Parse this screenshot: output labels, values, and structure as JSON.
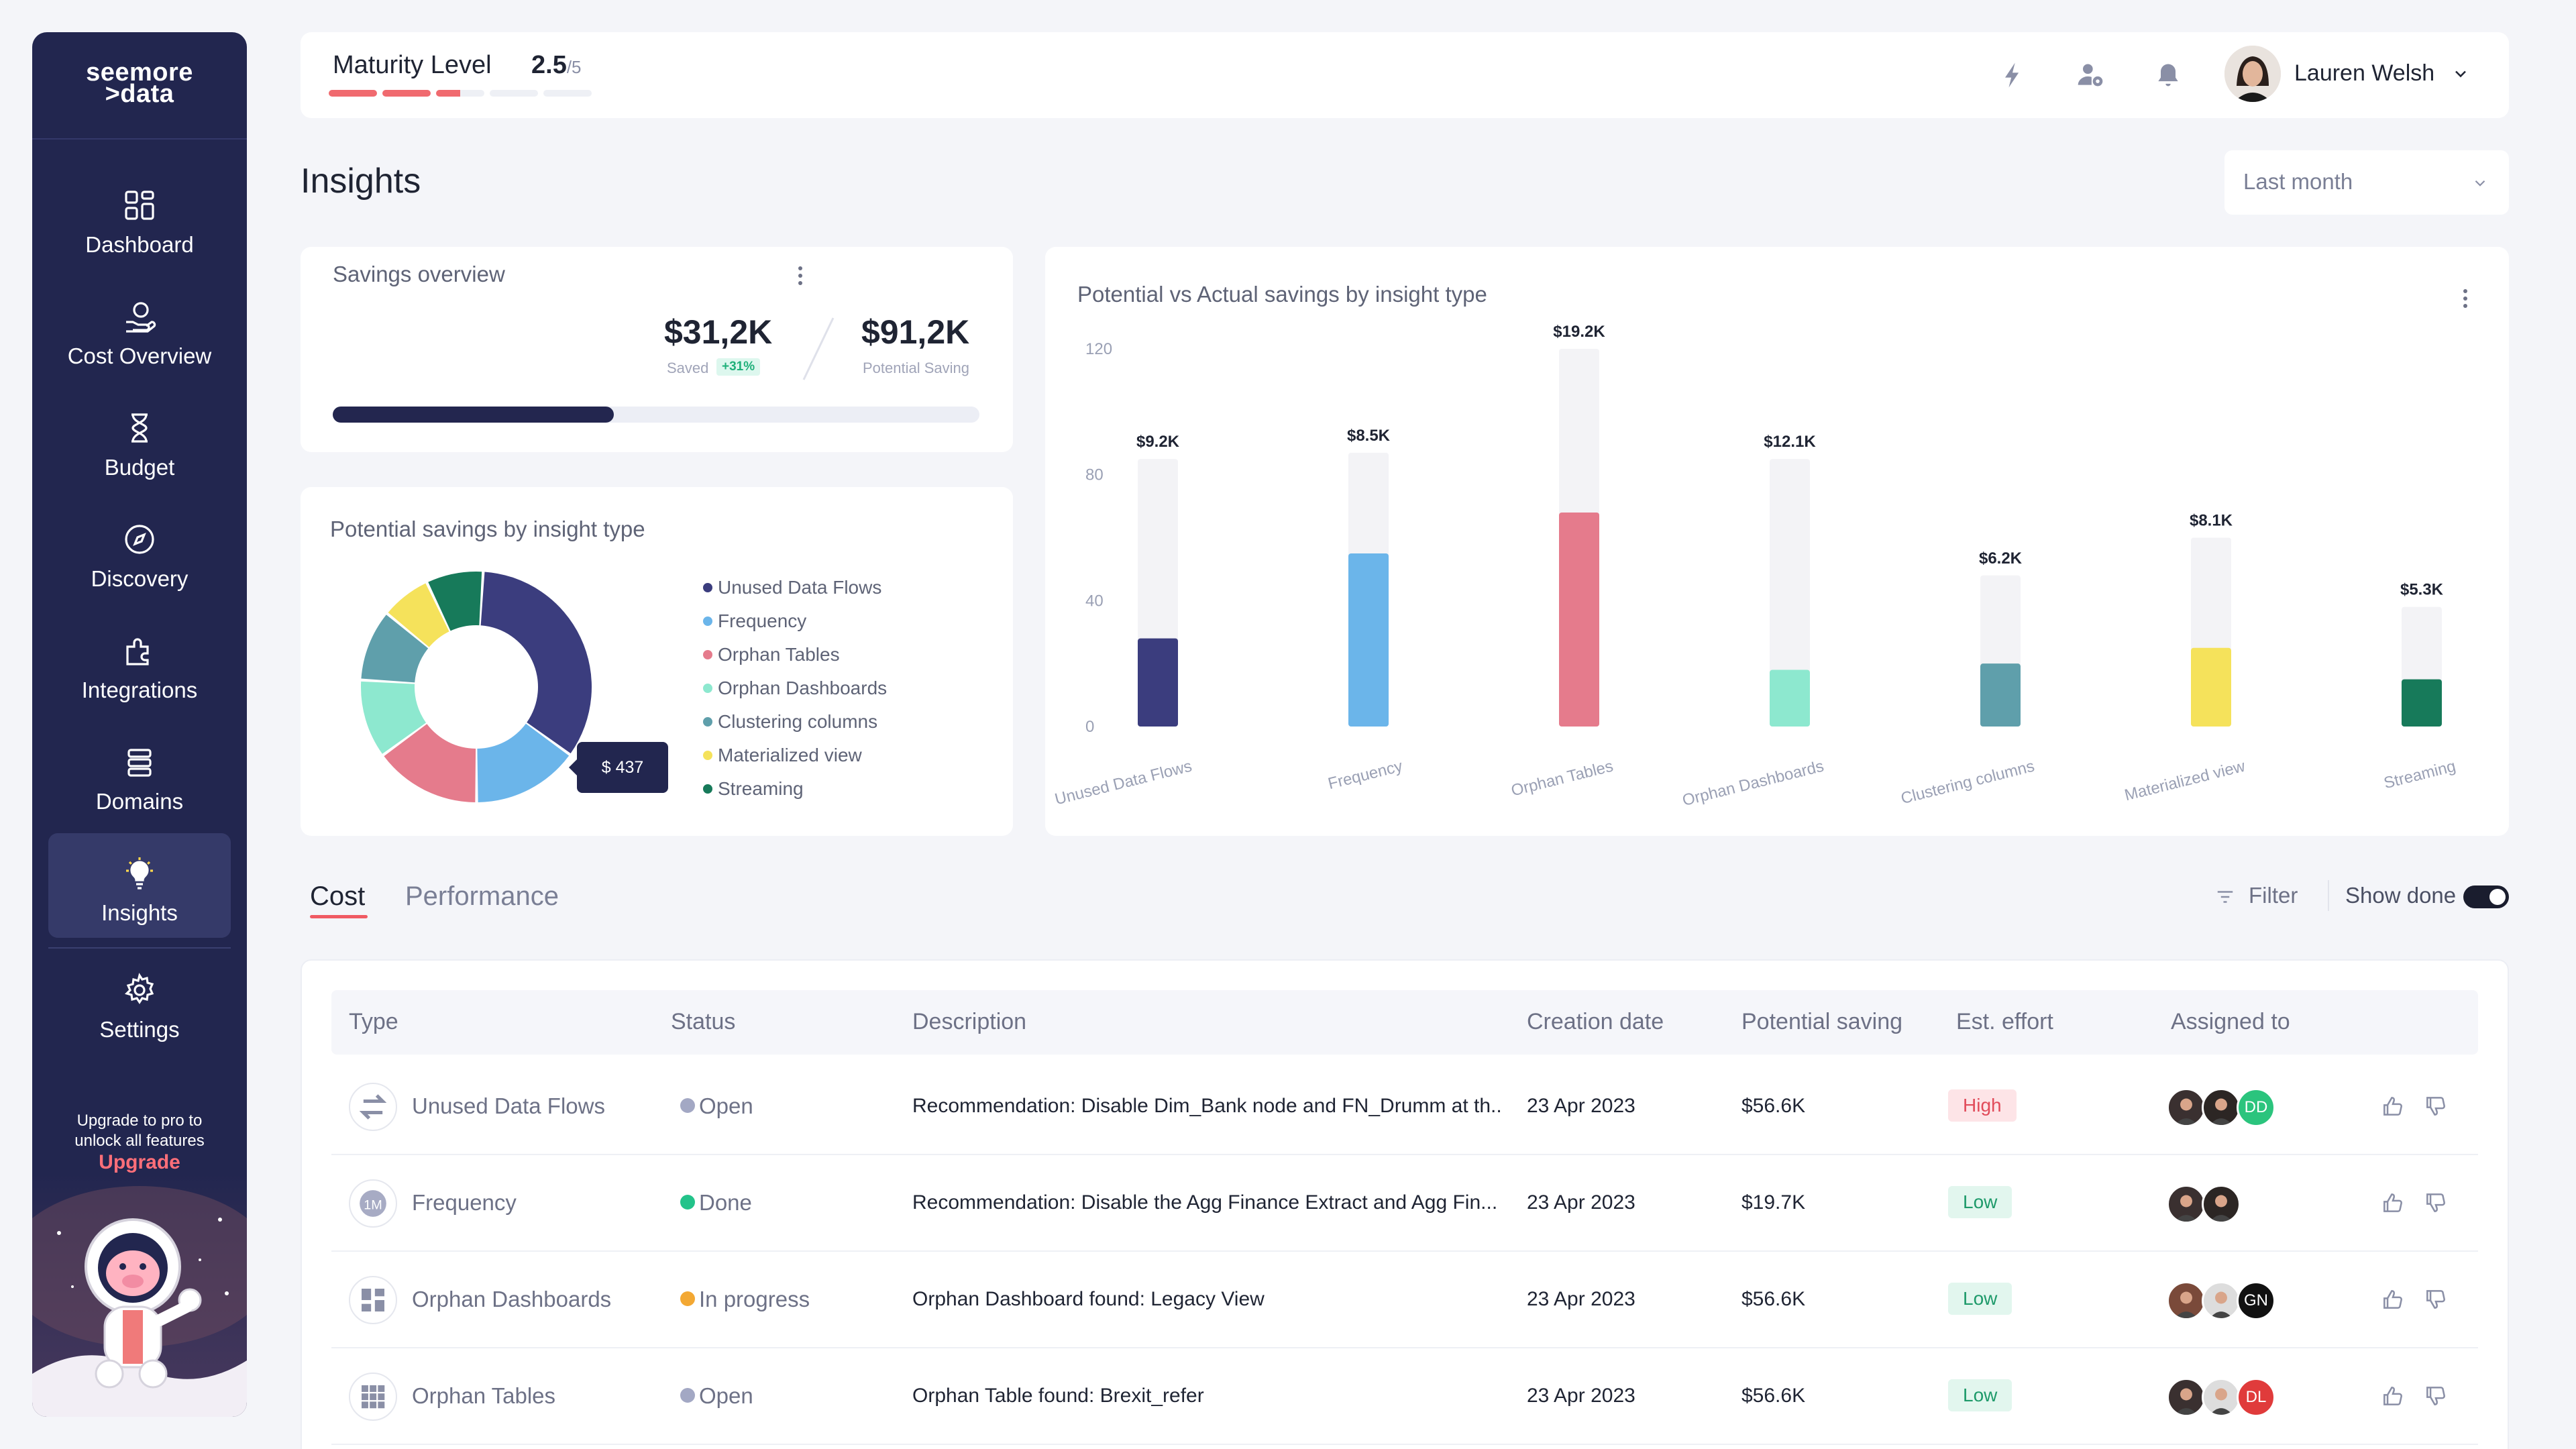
{
  "sidebar": {
    "logo_line1": "seemore",
    "logo_line2": ">data",
    "items": [
      {
        "label": "Dashboard",
        "icon": "dashboard-icon"
      },
      {
        "label": "Cost Overview",
        "icon": "cost-overview-icon"
      },
      {
        "label": "Budget",
        "icon": "budget-icon"
      },
      {
        "label": "Discovery",
        "icon": "discovery-icon"
      },
      {
        "label": "Integrations",
        "icon": "integrations-icon"
      },
      {
        "label": "Domains",
        "icon": "domains-icon"
      },
      {
        "label": "Insights",
        "icon": "insights-icon",
        "active": true
      },
      {
        "label": "Settings",
        "icon": "settings-icon"
      }
    ],
    "upgrade_line1": "Upgrade to pro to",
    "upgrade_line2": "unlock all features",
    "upgrade_link": "Upgrade"
  },
  "topbar": {
    "maturity_label": "Maturity Level",
    "maturity_value": "2.5",
    "maturity_max": "/5",
    "maturity_fraction": 0.5,
    "user_name": "Lauren Welsh",
    "icons": [
      "lightning-icon",
      "user-settings-icon",
      "bell-icon"
    ]
  },
  "page": {
    "title": "Insights",
    "period": "Last month"
  },
  "savings_overview": {
    "title": "Savings overview",
    "saved_value": "$31,2K",
    "saved_label": "Saved",
    "saved_change": "+31%",
    "potential_value": "$91,2K",
    "potential_label": "Potential Saving",
    "progress_fraction": 0.435
  },
  "donut": {
    "title": "Potential savings by insight type",
    "tooltip": "$ 437",
    "legend": [
      {
        "name": "Unused Data Flows",
        "color": "#3b3d7e"
      },
      {
        "name": "Frequency",
        "color": "#6bb5ea"
      },
      {
        "name": "Orphan Tables",
        "color": "#e57b8c"
      },
      {
        "name": "Orphan Dashboards",
        "color": "#8de8cf"
      },
      {
        "name": "Clustering columns",
        "color": "#5f9fab"
      },
      {
        "name": "Materialized view",
        "color": "#f5e25b"
      },
      {
        "name": "Streaming",
        "color": "#177a5a"
      }
    ],
    "values": [
      34,
      15,
      15,
      11,
      10,
      7,
      8
    ]
  },
  "chart_data": {
    "type": "bar",
    "title": "Potential vs Actual savings by insight type",
    "categories": [
      "Unused Data Flows",
      "Frequency",
      "Orphan Tables",
      "Orphan Dashboards",
      "Clustering columns",
      "Materialized view",
      "Streaming"
    ],
    "series": [
      {
        "name": "",
        "values": [
          85,
          87,
          120,
          85,
          48,
          60,
          38
        ],
        "color": "#f3f3f6"
      },
      {
        "name": "",
        "values": [
          28,
          55,
          68,
          18,
          20,
          25,
          15
        ]
      }
    ],
    "data_labels": [
      "$9.2K",
      "$8.5K",
      "$19.2K",
      "$12.1K",
      "$6.2K",
      "$8.1K",
      "$5.3K"
    ],
    "colors": [
      "#3b3d7e",
      "#6bb5ea",
      "#e57b8c",
      "#8de8cf",
      "#5f9fab",
      "#f5e25b",
      "#177a5a"
    ],
    "yticks": [
      "120",
      "80",
      "40",
      "0"
    ],
    "ylim": [
      0,
      120
    ]
  },
  "tabs": [
    {
      "label": "Cost",
      "active": true
    },
    {
      "label": "Performance",
      "active": false
    }
  ],
  "filter_label": "Filter",
  "show_done_label": "Show done",
  "show_done_on": true,
  "table": {
    "headers": [
      "Type",
      "Status",
      "Description",
      "Creation date",
      "Potential saving",
      "Est. effort",
      "Assigned to"
    ],
    "rows": [
      {
        "type": "Unused Data Flows",
        "icon": "flows-icon",
        "status": "Open",
        "status_color": "#a3a8c4",
        "description": "Recommendation: Disable Dim_Bank node and FN_Drumm at th..",
        "date": "23 Apr 2023",
        "saving": "$56.6K",
        "effort": "High",
        "effort_color": "#e14b5a",
        "effort_bg": "#fde4e7",
        "avatars": [
          {
            "initials": "",
            "color": "#3a3030"
          },
          {
            "initials": "",
            "color": "#2c2624"
          },
          {
            "initials": "DD",
            "color": "#2bc47d"
          }
        ]
      },
      {
        "type": "Frequency",
        "icon": "frequency-icon",
        "status": "Done",
        "status_color": "#23c38a",
        "description": "Recommendation: Disable the Agg Finance Extract and Agg Fin...",
        "date": "23 Apr 2023",
        "saving": "$19.7K",
        "effort": "Low",
        "effort_color": "#1e9a6a",
        "effort_bg": "#e2f6ee",
        "avatars": [
          {
            "initials": "",
            "color": "#3a3030"
          },
          {
            "initials": "",
            "color": "#2c2624"
          }
        ]
      },
      {
        "type": "Orphan Dashboards",
        "icon": "dashboards-icon",
        "status": "In progress",
        "status_color": "#f3a833",
        "description": "Orphan Dashboard found:  Legacy View",
        "date": "23 Apr 2023",
        "saving": "$56.6K",
        "effort": "Low",
        "effort_color": "#1e9a6a",
        "effort_bg": "#e2f6ee",
        "avatars": [
          {
            "initials": "",
            "color": "#7a4a3a"
          },
          {
            "initials": "",
            "color": "#dddddd"
          },
          {
            "initials": "GN",
            "color": "#111111"
          }
        ]
      },
      {
        "type": "Orphan Tables",
        "icon": "tables-icon",
        "status": "Open",
        "status_color": "#a3a8c4",
        "description": "Orphan Table found: Brexit_refer",
        "date": "23 Apr 2023",
        "saving": "$56.6K",
        "effort": "Low",
        "effort_color": "#1e9a6a",
        "effort_bg": "#e2f6ee",
        "avatars": [
          {
            "initials": "",
            "color": "#3a3030"
          },
          {
            "initials": "",
            "color": "#dddddd"
          },
          {
            "initials": "DL",
            "color": "#e03b3b"
          }
        ]
      }
    ]
  }
}
